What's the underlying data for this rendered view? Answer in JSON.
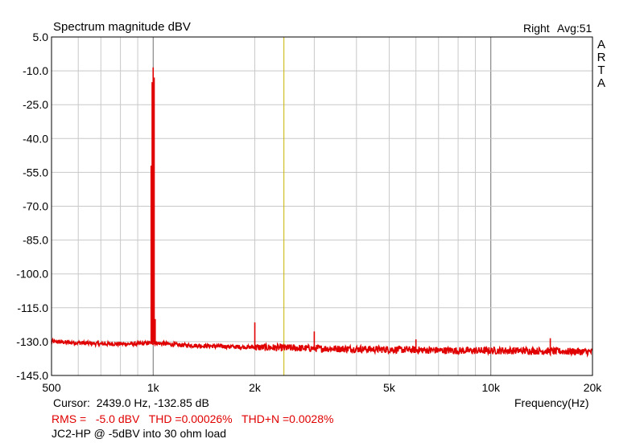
{
  "header": {
    "title": "Spectrum magnitude dBV",
    "channel": "Right",
    "avg": "Avg:51",
    "brand_letters": [
      "A",
      "R",
      "T",
      "A"
    ]
  },
  "footer": {
    "cursor_label": "Cursor:",
    "cursor_value": "2439.0 Hz, -132.85 dB",
    "rms": "RMS =   -5.0 dBV   THD =0.00026%   THD+N =0.0028%",
    "note": "JC2-HP @ -5dBV into 30 ohm load"
  },
  "colors": {
    "trace": "#e00000",
    "cursor": "#c8b400",
    "grid": "#c8c8c8",
    "background": "#ffffff"
  },
  "chart_data": {
    "type": "line",
    "xscale": "log",
    "xlabel": "Frequency(Hz)",
    "ylabel": "",
    "xlim": [
      500,
      20000
    ],
    "ylim": [
      -145,
      5
    ],
    "y_ticks": [
      "5.0",
      "-10.0",
      "-25.0",
      "-40.0",
      "-55.0",
      "-70.0",
      "-85.0",
      "-100.0",
      "-115.0",
      "-130.0",
      "-145.0"
    ],
    "x_tick_labels": [
      {
        "x": 500,
        "label": "500"
      },
      {
        "x": 1000,
        "label": "1k"
      },
      {
        "x": 2000,
        "label": "2k"
      },
      {
        "x": 5000,
        "label": "5k"
      },
      {
        "x": 10000,
        "label": "10k"
      },
      {
        "x": 20000,
        "label": "20k"
      }
    ],
    "x_grid": [
      600,
      700,
      800,
      900,
      1000,
      2000,
      3000,
      4000,
      5000,
      6000,
      7000,
      8000,
      9000,
      10000
    ],
    "grid": true,
    "cursor_x": 2439,
    "series": [
      {
        "noise_floor": [
          [
            500,
            -130
          ],
          [
            600,
            -130.5
          ],
          [
            700,
            -131
          ],
          [
            900,
            -131
          ],
          [
            1000,
            -130.5
          ],
          [
            1200,
            -131.5
          ],
          [
            1500,
            -132
          ],
          [
            2000,
            -132.5
          ],
          [
            3000,
            -133
          ],
          [
            5000,
            -133.5
          ],
          [
            8000,
            -134
          ],
          [
            12000,
            -134
          ],
          [
            20000,
            -134.5
          ]
        ],
        "spikes": [
          [
            1000,
            -8.5
          ],
          [
            2000,
            -121.5
          ],
          [
            3000,
            -125.5
          ],
          [
            6000,
            -129
          ],
          [
            15000,
            -128.5
          ]
        ]
      }
    ]
  }
}
